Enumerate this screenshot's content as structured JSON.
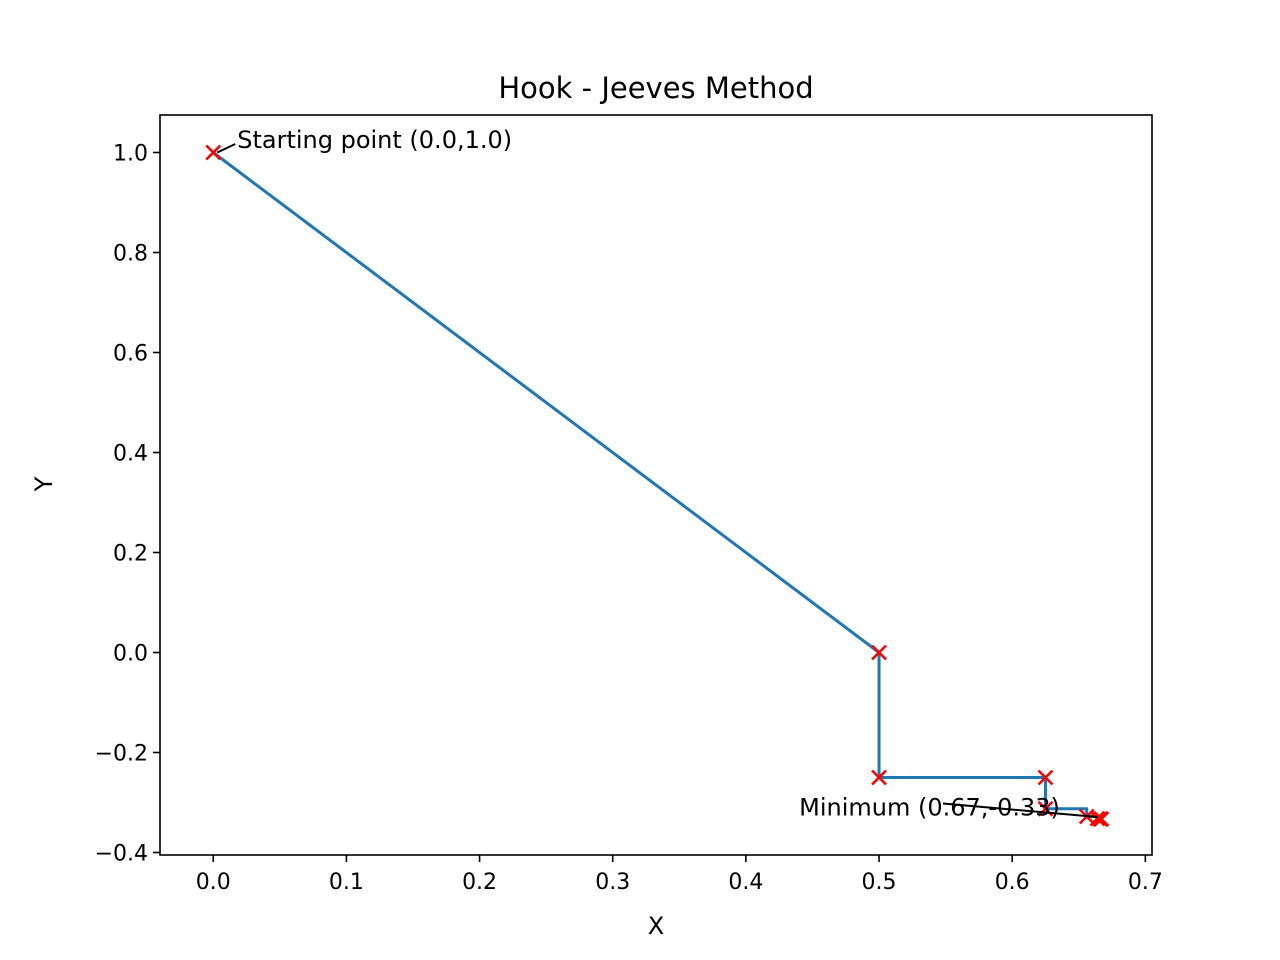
{
  "chart_data": {
    "type": "line",
    "title": "Hook - Jeeves Method",
    "xlabel": "X",
    "ylabel": "Y",
    "xlim": [
      -0.04,
      0.705
    ],
    "ylim": [
      -0.405,
      1.075
    ],
    "xticks": [
      "0.0",
      "0.1",
      "0.2",
      "0.3",
      "0.4",
      "0.5",
      "0.6",
      "0.7"
    ],
    "xtick_values": [
      0.0,
      0.1,
      0.2,
      0.3,
      0.4,
      0.5,
      0.6,
      0.7
    ],
    "yticks": [
      "−0.4",
      "−0.2",
      "0.0",
      "0.2",
      "0.4",
      "0.6",
      "0.8",
      "1.0"
    ],
    "ytick_values": [
      -0.4,
      -0.2,
      0.0,
      0.2,
      0.4,
      0.6,
      0.8,
      1.0
    ],
    "grid": false,
    "series": [
      {
        "x": [
          0.0,
          0.5,
          0.5,
          0.625,
          0.625,
          0.656,
          0.656,
          0.664,
          0.664,
          0.666,
          0.666,
          0.667
        ],
        "y": [
          1.0,
          0.0,
          -0.25,
          -0.25,
          -0.3125,
          -0.3125,
          -0.328,
          -0.328,
          -0.332,
          -0.332,
          -0.333,
          -0.333
        ],
        "color": "#1f77b4"
      }
    ],
    "markers": {
      "symbol": "x",
      "color": "#ff0000",
      "x": [
        0.0,
        0.5,
        0.5,
        0.625,
        0.625,
        0.656,
        0.664,
        0.666,
        0.667
      ],
      "y": [
        1.0,
        0.0,
        -0.25,
        -0.25,
        -0.3125,
        -0.328,
        -0.332,
        -0.333,
        -0.333
      ]
    },
    "annotations": [
      {
        "text": "Starting point (0.0,1.0)",
        "point": [
          0.0,
          1.0
        ],
        "text_pos": [
          0.018,
          1.025
        ]
      },
      {
        "text": "Minimum (0.67,-0.33)",
        "point": [
          0.667,
          -0.333
        ],
        "text_pos": [
          0.44,
          -0.31
        ]
      }
    ]
  }
}
